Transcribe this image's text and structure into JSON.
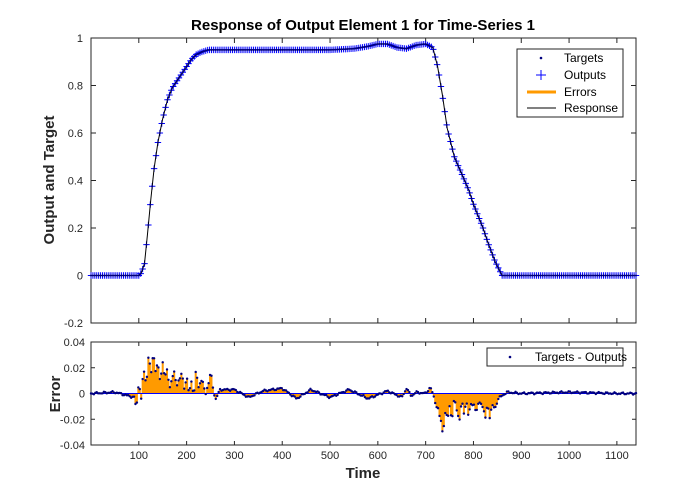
{
  "chart_data": [
    {
      "type": "line",
      "title": "Response of Output Element 1 for Time-Series 1",
      "xlabel": "",
      "ylabel": "Output and Target",
      "xlim": [
        0,
        1140
      ],
      "ylim": [
        -0.2,
        1
      ],
      "yticks": [
        "-0.2",
        "0",
        "0.2",
        "0.4",
        "0.6",
        "0.8",
        "1"
      ],
      "grid": false,
      "legend_position": "top-right",
      "legend": [
        "Targets",
        "Outputs",
        "Errors",
        "Response"
      ],
      "colors": {
        "targets": "#00007f",
        "outputs": "#0000ff",
        "errors": "#ff9a00",
        "response": "#000000"
      },
      "series": [
        {
          "name": "Response",
          "x": [
            0,
            100,
            105,
            112,
            118,
            125,
            132,
            140,
            150,
            160,
            170,
            180,
            190,
            200,
            210,
            220,
            230,
            245,
            260,
            300,
            350,
            400,
            450,
            500,
            550,
            580,
            600,
            620,
            640,
            660,
            680,
            700,
            715,
            725,
            735,
            745,
            760,
            775,
            790,
            800,
            810,
            820,
            830,
            845,
            860,
            900,
            1000,
            1100,
            1140
          ],
          "y": [
            0,
            0,
            0.01,
            0.05,
            0.17,
            0.32,
            0.45,
            0.56,
            0.66,
            0.74,
            0.79,
            0.82,
            0.85,
            0.88,
            0.91,
            0.93,
            0.94,
            0.95,
            0.95,
            0.95,
            0.95,
            0.95,
            0.95,
            0.95,
            0.955,
            0.965,
            0.975,
            0.975,
            0.96,
            0.955,
            0.97,
            0.975,
            0.96,
            0.88,
            0.76,
            0.62,
            0.5,
            0.43,
            0.36,
            0.3,
            0.25,
            0.2,
            0.14,
            0.06,
            0,
            0,
            0,
            0,
            0
          ]
        }
      ]
    },
    {
      "type": "line",
      "title": "",
      "xlabel": "Time",
      "ylabel": "Error",
      "xlim": [
        0,
        1140
      ],
      "ylim": [
        -0.04,
        0.04
      ],
      "xticks": [
        "100",
        "200",
        "300",
        "400",
        "500",
        "600",
        "700",
        "800",
        "900",
        "1000",
        "1100"
      ],
      "yticks": [
        "-0.04",
        "-0.02",
        "0",
        "0.02",
        "0.04"
      ],
      "grid": false,
      "legend_position": "top-right",
      "legend": [
        "Targets - Outputs"
      ],
      "series": [
        {
          "name": "Targets - Outputs",
          "x": [
            0,
            50,
            90,
            95,
            100,
            105,
            110,
            115,
            120,
            125,
            130,
            135,
            140,
            145,
            150,
            155,
            160,
            165,
            170,
            175,
            180,
            185,
            190,
            195,
            200,
            205,
            210,
            215,
            220,
            225,
            230,
            240,
            250,
            260,
            270,
            300,
            330,
            360,
            400,
            430,
            460,
            500,
            540,
            580,
            620,
            650,
            660,
            670,
            680,
            700,
            710,
            720,
            725,
            730,
            735,
            740,
            745,
            750,
            755,
            760,
            765,
            770,
            775,
            780,
            785,
            790,
            795,
            800,
            805,
            810,
            815,
            820,
            825,
            830,
            835,
            840,
            845,
            850,
            855,
            870,
            900,
            1000,
            1100,
            1140
          ],
          "y": [
            0,
            0.001,
            -0.003,
            -0.012,
            0.01,
            -0.005,
            0.02,
            0.008,
            0.028,
            0.012,
            0.035,
            0.02,
            0.018,
            0.012,
            0.025,
            0.01,
            0.02,
            0.005,
            0.012,
            0.015,
            0.008,
            0.01,
            0.015,
            0.005,
            0.012,
            0.0,
            0.01,
            -0.002,
            0.018,
            0.005,
            0.012,
            0.0,
            0.015,
            -0.005,
            0.003,
            0.003,
            -0.003,
            0.002,
            0.004,
            -0.004,
            0.003,
            -0.003,
            0.003,
            -0.004,
            0.002,
            -0.003,
            0.004,
            -0.002,
            0.001,
            0.0,
            0.005,
            -0.006,
            -0.012,
            -0.02,
            -0.028,
            -0.015,
            -0.022,
            -0.01,
            -0.018,
            -0.005,
            -0.012,
            -0.02,
            -0.008,
            -0.015,
            -0.005,
            -0.018,
            -0.01,
            -0.006,
            -0.015,
            -0.01,
            -0.005,
            -0.012,
            -0.02,
            -0.008,
            -0.018,
            -0.01,
            -0.012,
            -0.005,
            -0.003,
            0.001,
            0.0,
            0.001,
            0.0,
            0.0
          ]
        }
      ]
    }
  ]
}
